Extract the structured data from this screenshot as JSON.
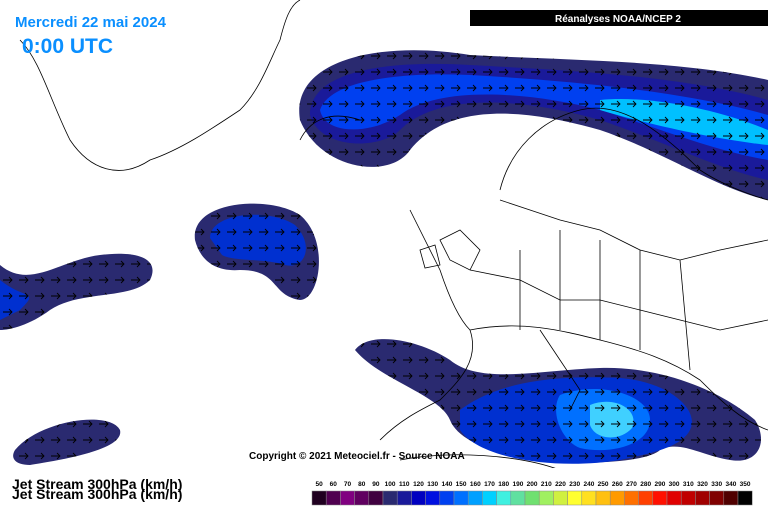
{
  "header": {
    "date": "Mercredi 22 mai 2024",
    "time": "0:00 UTC",
    "source": "Réanalyses NOAA/NCEP 2"
  },
  "copyright": "Copyright © 2021 Meteociel.fr - Source NOAA",
  "field": "Jet Stream 300hPa (km/h)",
  "legend": {
    "entries": [
      {
        "value": 50,
        "color": "#200020"
      },
      {
        "value": 60,
        "color": "#500050"
      },
      {
        "value": 70,
        "color": "#800080"
      },
      {
        "value": 80,
        "color": "#600060"
      },
      {
        "value": 90,
        "color": "#400040"
      },
      {
        "value": 100,
        "color": "#2a2a70"
      },
      {
        "value": 110,
        "color": "#1a1a9a"
      },
      {
        "value": 120,
        "color": "#0000c0"
      },
      {
        "value": 130,
        "color": "#0010e0"
      },
      {
        "value": 140,
        "color": "#0040f0"
      },
      {
        "value": 150,
        "color": "#0070ff"
      },
      {
        "value": 160,
        "color": "#00a0ff"
      },
      {
        "value": 170,
        "color": "#00d0ff"
      },
      {
        "value": 180,
        "color": "#40f0e0"
      },
      {
        "value": 190,
        "color": "#60e0a0"
      },
      {
        "value": 200,
        "color": "#70e070"
      },
      {
        "value": 210,
        "color": "#a0f060"
      },
      {
        "value": 220,
        "color": "#d0f040"
      },
      {
        "value": 230,
        "color": "#ffff30"
      },
      {
        "value": 240,
        "color": "#ffe020"
      },
      {
        "value": 250,
        "color": "#ffc010"
      },
      {
        "value": 260,
        "color": "#ff9a00"
      },
      {
        "value": 270,
        "color": "#ff7000"
      },
      {
        "value": 280,
        "color": "#ff4000"
      },
      {
        "value": 290,
        "color": "#ff1000"
      },
      {
        "value": 300,
        "color": "#e00000"
      },
      {
        "value": 310,
        "color": "#c00000"
      },
      {
        "value": 320,
        "color": "#a00000"
      },
      {
        "value": 330,
        "color": "#800000"
      },
      {
        "value": 340,
        "color": "#500000"
      },
      {
        "value": 350,
        "color": "#000000"
      }
    ]
  }
}
